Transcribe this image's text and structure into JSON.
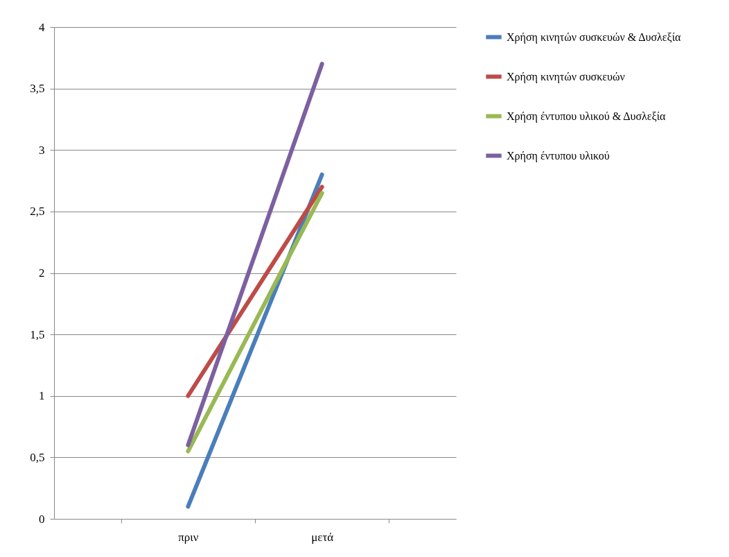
{
  "chart_data": {
    "type": "line",
    "categories": [
      "πριν",
      "μετά"
    ],
    "series": [
      {
        "name": "Χρήση κινητών συσκευών & Δυσλεξία",
        "color": "#4a7ebb",
        "values": [
          0.1,
          2.8
        ]
      },
      {
        "name": "Χρήση κινητών συσκευών",
        "color": "#be4b48",
        "values": [
          1.0,
          2.7
        ]
      },
      {
        "name": "Χρήση έντυπου υλικού & Δυσλεξία",
        "color": "#98b954",
        "values": [
          0.55,
          2.65
        ]
      },
      {
        "name": "Χρήση έντυπου υλικού",
        "color": "#7d60a0",
        "values": [
          0.6,
          3.7
        ]
      }
    ],
    "ylim": [
      0,
      4
    ],
    "yticks": [
      0,
      {
        "value": 0.5,
        "label": "0,5"
      },
      1,
      {
        "value": 1.5,
        "label": "1,5"
      },
      2,
      {
        "value": 2.5,
        "label": "2,5"
      },
      3,
      {
        "value": 3.5,
        "label": "3,5"
      },
      4
    ],
    "grid": "y",
    "legend": "right",
    "marker": "none",
    "line_style": "solid"
  }
}
